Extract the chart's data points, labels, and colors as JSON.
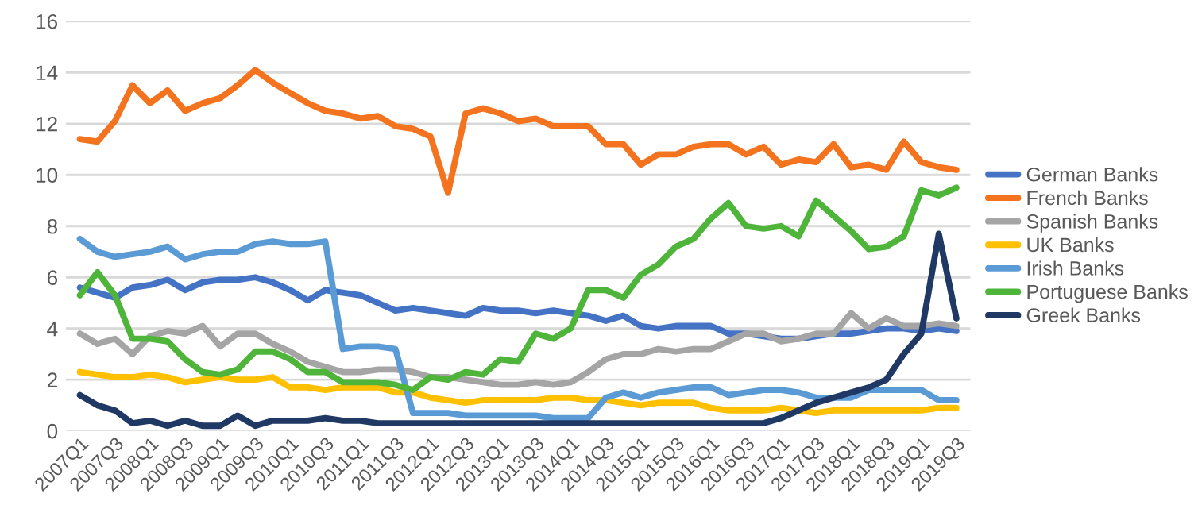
{
  "chart_data": {
    "type": "line",
    "categories": [
      "2007Q1",
      null,
      "2007Q3",
      null,
      "2008Q1",
      null,
      "2008Q3",
      null,
      "2009Q1",
      null,
      "2009Q3",
      null,
      "2010Q1",
      null,
      "2010Q3",
      null,
      "2011Q1",
      null,
      "2011Q3",
      null,
      "2012Q1",
      null,
      "2012Q3",
      null,
      "2013Q1",
      null,
      "2013Q3",
      null,
      "2014Q1",
      null,
      "2014Q3",
      null,
      "2015Q1",
      null,
      "2015Q3",
      null,
      "2016Q1",
      null,
      "2016Q3",
      null,
      "2017Q1",
      null,
      "2017Q3",
      null,
      "2018Q1",
      null,
      "2018Q3",
      null,
      "2019Q1",
      null,
      "2019Q3"
    ],
    "series": [
      {
        "name": "German Banks",
        "color": "#4472c4",
        "values": [
          5.6,
          5.4,
          5.2,
          5.6,
          5.7,
          5.9,
          5.5,
          5.8,
          5.9,
          5.9,
          6.0,
          5.8,
          5.5,
          5.1,
          5.5,
          5.4,
          5.3,
          5.0,
          4.7,
          4.8,
          4.7,
          4.6,
          4.5,
          4.8,
          4.7,
          4.7,
          4.6,
          4.7,
          4.6,
          4.5,
          4.3,
          4.5,
          4.1,
          4.0,
          4.1,
          4.1,
          4.1,
          3.8,
          3.8,
          3.7,
          3.6,
          3.6,
          3.7,
          3.8,
          3.8,
          3.9,
          4.0,
          4.0,
          3.9,
          4.0,
          3.9
        ]
      },
      {
        "name": "French Banks",
        "color": "#f4731f",
        "values": [
          11.4,
          11.3,
          12.1,
          13.5,
          12.8,
          13.3,
          12.5,
          12.8,
          13.0,
          13.5,
          14.1,
          13.6,
          13.2,
          12.8,
          12.5,
          12.4,
          12.2,
          12.3,
          11.9,
          11.8,
          11.5,
          9.3,
          12.4,
          12.6,
          12.4,
          12.1,
          12.2,
          11.9,
          11.9,
          11.9,
          11.2,
          11.2,
          10.4,
          10.8,
          10.8,
          11.1,
          11.2,
          11.2,
          10.8,
          11.1,
          10.4,
          10.6,
          10.5,
          11.2,
          10.3,
          10.4,
          10.2,
          11.3,
          10.5,
          10.3,
          10.2
        ]
      },
      {
        "name": "Spanish Banks",
        "color": "#a5a5a5",
        "values": [
          3.8,
          3.4,
          3.6,
          3.0,
          3.7,
          3.9,
          3.8,
          4.1,
          3.3,
          3.8,
          3.8,
          3.4,
          3.1,
          2.7,
          2.5,
          2.3,
          2.3,
          2.4,
          2.4,
          2.3,
          2.1,
          2.1,
          2.0,
          1.9,
          1.8,
          1.8,
          1.9,
          1.8,
          1.9,
          2.3,
          2.8,
          3.0,
          3.0,
          3.2,
          3.1,
          3.2,
          3.2,
          3.5,
          3.8,
          3.8,
          3.5,
          3.6,
          3.8,
          3.8,
          4.6,
          4.0,
          4.4,
          4.1,
          4.1,
          4.2,
          4.1
        ]
      },
      {
        "name": "UK Banks",
        "color": "#ffc000",
        "values": [
          2.3,
          2.2,
          2.1,
          2.1,
          2.2,
          2.1,
          1.9,
          2.0,
          2.1,
          2.0,
          2.0,
          2.1,
          1.7,
          1.7,
          1.6,
          1.7,
          1.7,
          1.7,
          1.5,
          1.5,
          1.3,
          1.2,
          1.1,
          1.2,
          1.2,
          1.2,
          1.2,
          1.3,
          1.3,
          1.2,
          1.2,
          1.1,
          1.0,
          1.1,
          1.1,
          1.1,
          0.9,
          0.8,
          0.8,
          0.8,
          0.9,
          0.8,
          0.7,
          0.8,
          0.8,
          0.8,
          0.8,
          0.8,
          0.8,
          0.9,
          0.9
        ]
      },
      {
        "name": "Irish Banks",
        "color": "#5b9bd5",
        "values": [
          7.5,
          7.0,
          6.8,
          6.9,
          7.0,
          7.2,
          6.7,
          6.9,
          7.0,
          7.0,
          7.3,
          7.4,
          7.3,
          7.3,
          7.4,
          3.2,
          3.3,
          3.3,
          3.2,
          0.7,
          0.7,
          0.7,
          0.6,
          0.6,
          0.6,
          0.6,
          0.6,
          0.5,
          0.5,
          0.5,
          1.3,
          1.5,
          1.3,
          1.5,
          1.6,
          1.7,
          1.7,
          1.4,
          1.5,
          1.6,
          1.6,
          1.5,
          1.3,
          1.3,
          1.3,
          1.6,
          1.6,
          1.6,
          1.6,
          1.2,
          1.2
        ]
      },
      {
        "name": "Portuguese Banks",
        "color": "#4fb53a",
        "values": [
          5.3,
          6.2,
          5.3,
          3.6,
          3.6,
          3.5,
          2.8,
          2.3,
          2.2,
          2.4,
          3.1,
          3.1,
          2.8,
          2.3,
          2.3,
          1.9,
          1.9,
          1.9,
          1.8,
          1.6,
          2.1,
          2.0,
          2.3,
          2.2,
          2.8,
          2.7,
          3.8,
          3.6,
          4.0,
          5.5,
          5.5,
          5.2,
          6.1,
          6.5,
          7.2,
          7.5,
          8.3,
          8.9,
          8.0,
          7.9,
          8.0,
          7.6,
          9.0,
          8.4,
          7.8,
          7.1,
          7.2,
          7.6,
          9.4,
          9.2,
          9.5
        ]
      },
      {
        "name": "Greek Banks",
        "color": "#203864",
        "values": [
          1.4,
          1.0,
          0.8,
          0.3,
          0.4,
          0.2,
          0.4,
          0.2,
          0.2,
          0.6,
          0.2,
          0.4,
          0.4,
          0.4,
          0.5,
          0.4,
          0.4,
          0.3,
          0.3,
          0.3,
          0.3,
          0.3,
          0.3,
          0.3,
          0.3,
          0.3,
          0.3,
          0.3,
          0.3,
          0.3,
          0.3,
          0.3,
          0.3,
          0.3,
          0.3,
          0.3,
          0.3,
          0.3,
          0.3,
          0.3,
          0.5,
          0.8,
          1.1,
          1.3,
          1.5,
          1.7,
          2.0,
          3.0,
          3.8,
          7.7,
          4.4
        ]
      }
    ],
    "ylim": [
      0,
      16
    ],
    "yticks": [
      0,
      2,
      4,
      6,
      8,
      10,
      12,
      14,
      16
    ],
    "grid": "y",
    "legend": "right",
    "marker": "none",
    "line_style": "solid"
  }
}
